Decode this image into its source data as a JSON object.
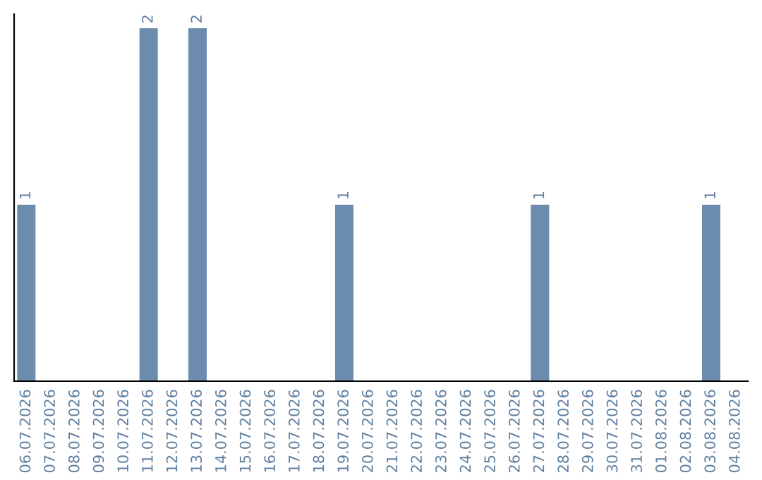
{
  "chart_data": {
    "type": "bar",
    "categories": [
      "06.07.2026",
      "07.07.2026",
      "08.07.2026",
      "09.07.2026",
      "10.07.2026",
      "11.07.2026",
      "12.07.2026",
      "13.07.2026",
      "14.07.2026",
      "15.07.2026",
      "16.07.2026",
      "17.07.2026",
      "18.07.2026",
      "19.07.2026",
      "20.07.2026",
      "21.07.2026",
      "22.07.2026",
      "23.07.2026",
      "24.07.2026",
      "25.07.2026",
      "26.07.2026",
      "27.07.2026",
      "28.07.2026",
      "29.07.2026",
      "30.07.2026",
      "31.07.2026",
      "01.08.2026",
      "02.08.2026",
      "03.08.2026",
      "04.08.2026"
    ],
    "values": [
      1,
      0,
      0,
      0,
      0,
      2,
      0,
      2,
      0,
      0,
      0,
      0,
      0,
      1,
      0,
      0,
      0,
      0,
      0,
      0,
      0,
      1,
      0,
      0,
      0,
      0,
      0,
      0,
      1,
      0
    ],
    "value_labels": [
      "1",
      null,
      null,
      null,
      null,
      "2",
      null,
      "2",
      null,
      null,
      null,
      null,
      null,
      "1",
      null,
      null,
      null,
      null,
      null,
      null,
      null,
      "1",
      null,
      null,
      null,
      null,
      null,
      null,
      "1",
      null
    ],
    "color": "#6b8cac",
    "ylim": [
      0,
      2.08
    ],
    "grid": false,
    "legend": false
  }
}
